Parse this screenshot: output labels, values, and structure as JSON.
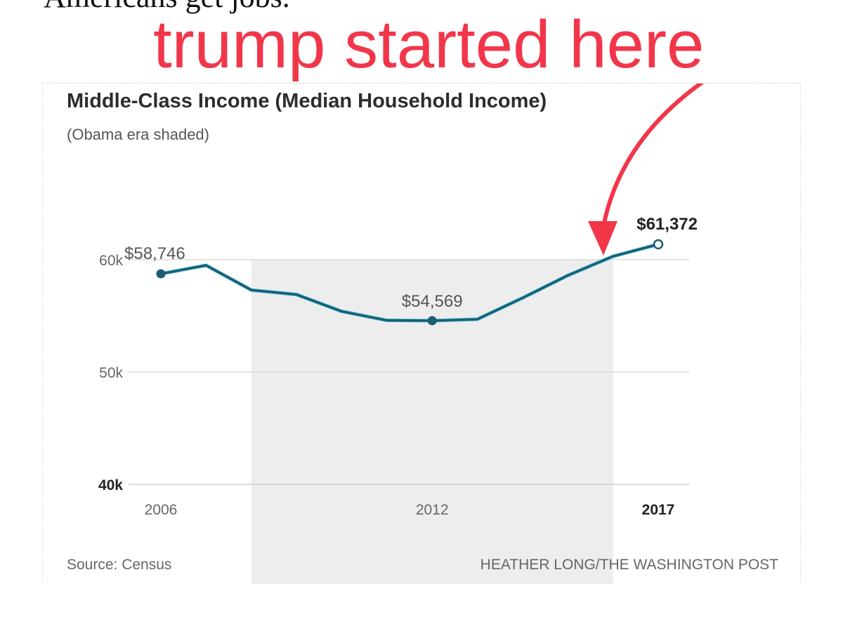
{
  "page": {
    "top_text": "Americans get jobs.",
    "annotation_text": "trump started here",
    "annotation_color": "#f2364a"
  },
  "chart_data": {
    "type": "line",
    "title": "Middle-Class Income (Median Household Income)",
    "subtitle": "(Obama era shaded)",
    "x": [
      2006,
      2007,
      2008,
      2009,
      2010,
      2011,
      2012,
      2013,
      2014,
      2015,
      2016,
      2017
    ],
    "series": [
      {
        "name": "Median Household Income",
        "values": [
          58746,
          59500,
          57300,
          56900,
          55400,
          54600,
          54569,
          54700,
          56600,
          58600,
          60300,
          61372
        ],
        "color": "#1c5c74"
      }
    ],
    "xlim": [
      2006,
      2017
    ],
    "ylim": [
      40000,
      60000
    ],
    "y_ticks": [
      {
        "value": 40000,
        "label": "40k",
        "bold": true
      },
      {
        "value": 50000,
        "label": "50k",
        "bold": false
      },
      {
        "value": 60000,
        "label": "60k",
        "bold": false
      }
    ],
    "x_ticks": [
      {
        "value": 2006,
        "label": "2006",
        "bold": false
      },
      {
        "value": 2012,
        "label": "2012",
        "bold": false
      },
      {
        "value": 2017,
        "label": "2017",
        "bold": true
      }
    ],
    "shaded_range": {
      "from": 2008,
      "to": 2016,
      "label": "Obama era",
      "color": "#ededed"
    },
    "data_labels": [
      {
        "x": 2006,
        "y": 58746,
        "text": "$58,746",
        "bold": false,
        "marker": "filled"
      },
      {
        "x": 2012,
        "y": 54569,
        "text": "$54,569",
        "bold": false,
        "marker": "filled"
      },
      {
        "x": 2017,
        "y": 61372,
        "text": "$61,372",
        "bold": true,
        "marker": "hollow"
      }
    ],
    "source": "Source: Census",
    "credit": "HEATHER LONG/THE WASHINGTON POST"
  }
}
